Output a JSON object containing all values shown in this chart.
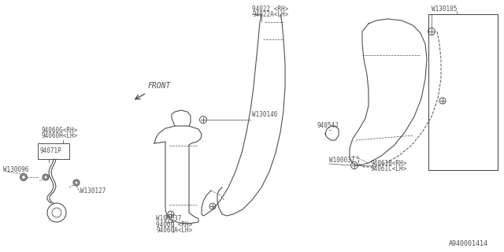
{
  "bg_color": "#ffffff",
  "line_color": "#505050",
  "text_color": "#505050",
  "diagram_id": "A940001414",
  "parts": {
    "bottom_left_label1": "94060G<RH>",
    "bottom_left_label2": "94060H<LH>",
    "bottom_left_part": "94071P",
    "bottom_left_screw1": "W130096",
    "bottom_left_screw2": "W130127",
    "center_bottom_label1": "94060 <RH>",
    "center_bottom_label2": "94060A<LH>",
    "center_bottom_screw": "W100037",
    "center_top_label1": "94022 <RH>",
    "center_top_label2": "94022A<LH>",
    "center_top_screw": "W130146",
    "right_top_screw": "W130105",
    "right_label": "94054J",
    "right_bottom_screw": "W100037",
    "right_label2_1": "94061B<RH>",
    "right_label2_2": "94061C<LH>",
    "front_label": "FRONT"
  }
}
